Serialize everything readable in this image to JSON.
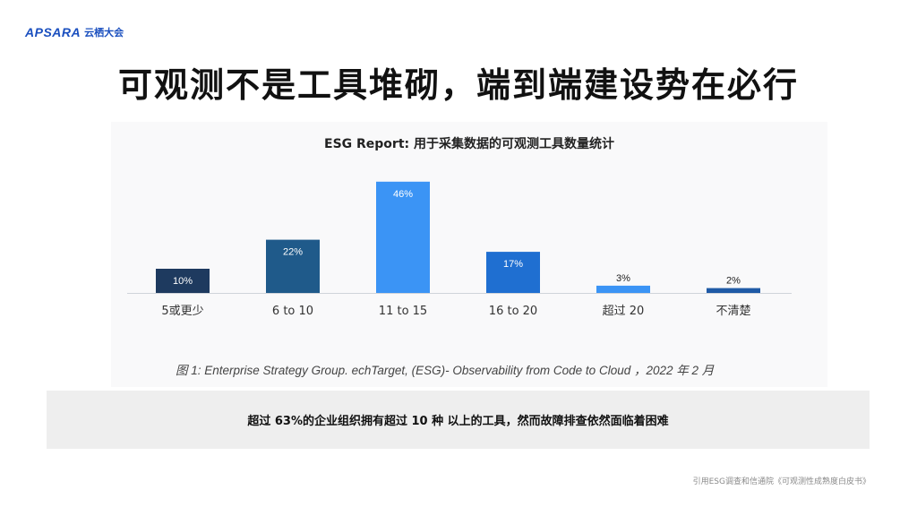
{
  "header": {
    "brand": "APSARA",
    "brand_cn": "云栖大会",
    "title": "可观测不是工具堆砌，端到端建设势在必行"
  },
  "chart_data": {
    "type": "bar",
    "title": "ESG Report: 用于采集数据的可观测工具数量统计",
    "categories": [
      "5或更少",
      "6 to 10",
      "11 to 15",
      "16 to 20",
      "超过 20",
      "不清楚"
    ],
    "values": [
      10,
      22,
      46,
      17,
      3,
      2
    ],
    "value_labels": [
      "10%",
      "22%",
      "46%",
      "17%",
      "3%",
      "2%"
    ],
    "colors": [
      "#1e3a5f",
      "#1f5a8a",
      "#3b94f5",
      "#1f6fd1",
      "#3b94f5",
      "#1f5aa6"
    ],
    "ylim": [
      0,
      50
    ],
    "grid": false,
    "legend": "none"
  },
  "caption": "图 1:  Enterprise Strategy Group. echTarget, (ESG)- Observability from Code to Cloud  ，2022 年 2 月",
  "banner": "超过 63%的企业组织拥有超过 10 种 以上的工具，然而故障排查依然面临着困难",
  "source": "引用ESG调查和信通院《可观测性成熟度白皮书》"
}
